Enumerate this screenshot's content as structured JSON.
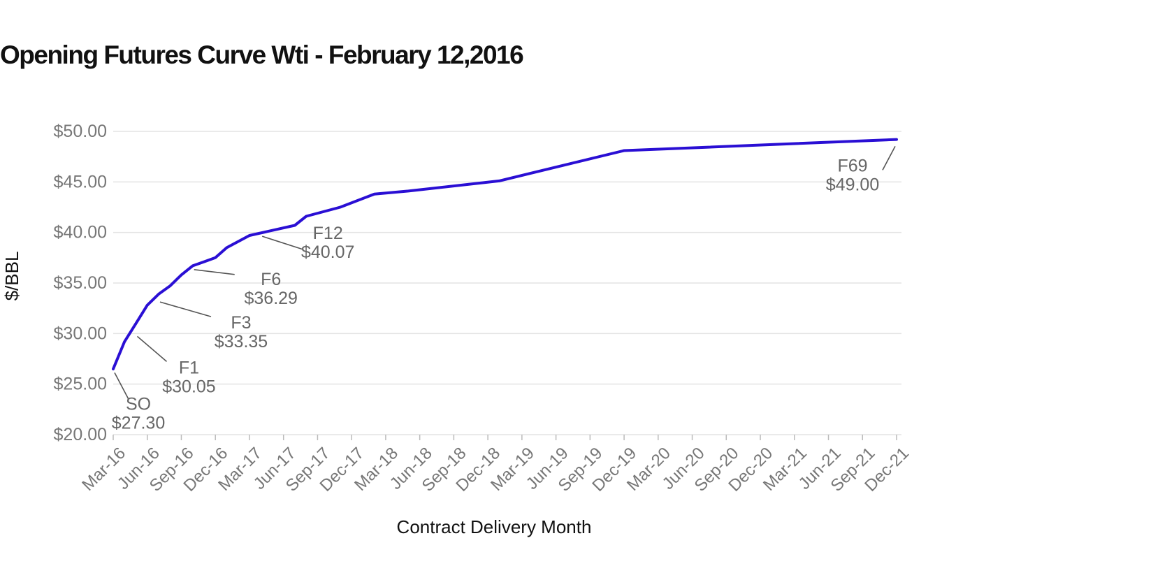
{
  "chart_data": {
    "type": "line",
    "title": "Opening Futures Curve Wti - February 12,2016",
    "xlabel": "Contract Delivery Month",
    "ylabel": "$/BBL",
    "ylim": [
      20,
      50
    ],
    "yticks": [
      {
        "value": 20,
        "label": "$20.00"
      },
      {
        "value": 25,
        "label": "$25.00"
      },
      {
        "value": 30,
        "label": "$30.00"
      },
      {
        "value": 35,
        "label": "$35.00"
      },
      {
        "value": 40,
        "label": "$40.00"
      },
      {
        "value": 45,
        "label": "$45.00"
      },
      {
        "value": 50,
        "label": "$50.00"
      }
    ],
    "xlim": [
      "2016-03",
      "2021-12"
    ],
    "xticks": [
      {
        "date": "2016-03",
        "label": "Mar-16"
      },
      {
        "date": "2016-06",
        "label": "Jun-16"
      },
      {
        "date": "2016-09",
        "label": "Sep-16"
      },
      {
        "date": "2016-12",
        "label": "Dec-16"
      },
      {
        "date": "2017-03",
        "label": "Mar-17"
      },
      {
        "date": "2017-06",
        "label": "Jun-17"
      },
      {
        "date": "2017-09",
        "label": "Sep-17"
      },
      {
        "date": "2017-12",
        "label": "Dec-17"
      },
      {
        "date": "2018-03",
        "label": "Mar-18"
      },
      {
        "date": "2018-06",
        "label": "Jun-18"
      },
      {
        "date": "2018-09",
        "label": "Sep-18"
      },
      {
        "date": "2018-12",
        "label": "Dec-18"
      },
      {
        "date": "2019-03",
        "label": "Mar-19"
      },
      {
        "date": "2019-06",
        "label": "Jun-19"
      },
      {
        "date": "2019-09",
        "label": "Sep-19"
      },
      {
        "date": "2019-12",
        "label": "Dec-19"
      },
      {
        "date": "2020-03",
        "label": "Mar-20"
      },
      {
        "date": "2020-06",
        "label": "Jun-20"
      },
      {
        "date": "2020-09",
        "label": "Sep-20"
      },
      {
        "date": "2020-12",
        "label": "Dec-20"
      },
      {
        "date": "2021-03",
        "label": "Mar-21"
      },
      {
        "date": "2021-06",
        "label": "Jun-21"
      },
      {
        "date": "2021-09",
        "label": "Sep-21"
      },
      {
        "date": "2021-12",
        "label": "Dec-21"
      }
    ],
    "series": [
      {
        "color": "#2a0fd4",
        "points": [
          {
            "x": "2016-03",
            "y": 26.5
          },
          {
            "x": "2016-04",
            "y": 29.2
          },
          {
            "x": "2016-05",
            "y": 31.0
          },
          {
            "x": "2016-06",
            "y": 32.8
          },
          {
            "x": "2016-07",
            "y": 33.9
          },
          {
            "x": "2016-08",
            "y": 34.7
          },
          {
            "x": "2016-09",
            "y": 35.8
          },
          {
            "x": "2016-10",
            "y": 36.7
          },
          {
            "x": "2016-11",
            "y": 37.1
          },
          {
            "x": "2016-12",
            "y": 37.5
          },
          {
            "x": "2017-01",
            "y": 38.5
          },
          {
            "x": "2017-03",
            "y": 39.7
          },
          {
            "x": "2017-07",
            "y": 40.7
          },
          {
            "x": "2017-08",
            "y": 41.6
          },
          {
            "x": "2017-11",
            "y": 42.5
          },
          {
            "x": "2018-02",
            "y": 43.8
          },
          {
            "x": "2018-05",
            "y": 44.1
          },
          {
            "x": "2019-01",
            "y": 45.1
          },
          {
            "x": "2019-12",
            "y": 48.1
          },
          {
            "x": "2021-12",
            "y": 49.2
          }
        ]
      }
    ],
    "annotations": [
      {
        "name": "SO",
        "value": "$27.30",
        "x": "2016-03",
        "y": 26.4
      },
      {
        "name": "F1",
        "value": "$30.05",
        "x": "2016-05",
        "y": 30.0
      },
      {
        "name": "F3",
        "value": "$33.35",
        "x": "2016-07",
        "y": 33.4
      },
      {
        "name": "F6",
        "value": "$36.29",
        "x": "2016-10",
        "y": 36.6
      },
      {
        "name": "F12",
        "value": "$40.07",
        "x": "2017-04",
        "y": 39.9
      },
      {
        "name": "F69",
        "value": "$49.00",
        "x": "2021-12",
        "y": 48.8
      }
    ]
  }
}
